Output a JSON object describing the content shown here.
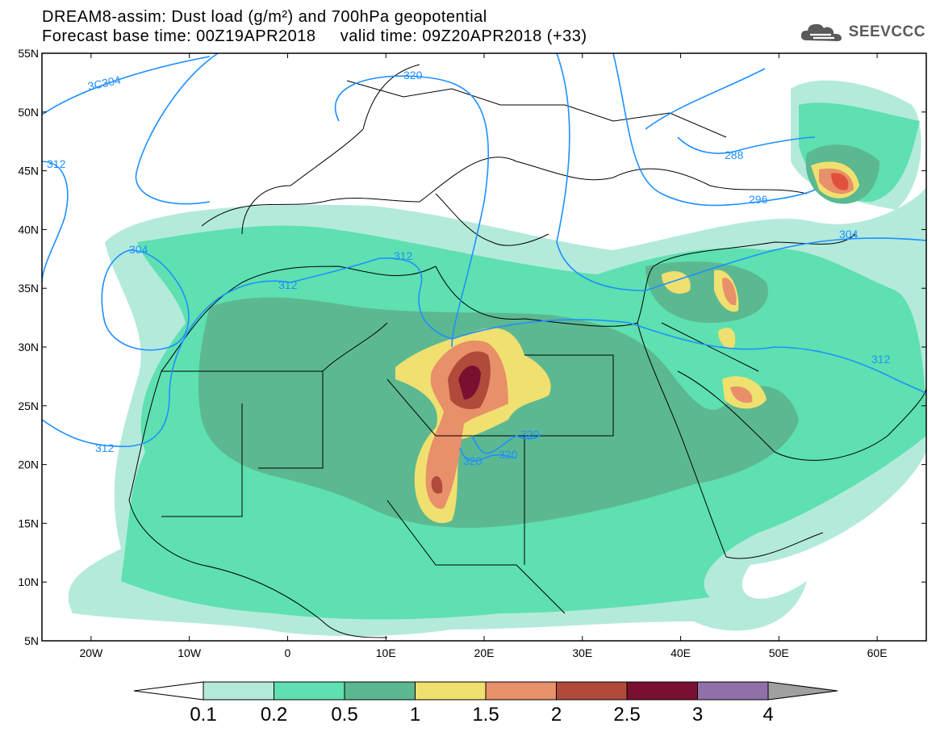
{
  "title": {
    "line1": "DREAM8-assim: Dust load (g/m²) and 700hPa geopotential",
    "line2": "Forecast base time: 00Z19APR2018     valid time: 09Z20APR2018 (+33)"
  },
  "logo": {
    "text": "SEEVCCC",
    "icon": "cloud-icon"
  },
  "map": {
    "lon_range": [
      -25,
      65
    ],
    "lat_range": [
      5,
      55
    ],
    "lat_ticks": [
      "55N",
      "50N",
      "45N",
      "40N",
      "35N",
      "30N",
      "25N",
      "20N",
      "15N",
      "10N",
      "5N"
    ],
    "lon_ticks": [
      "20W",
      "10W",
      "0",
      "10E",
      "20E",
      "30E",
      "40E",
      "50E",
      "60E"
    ],
    "contour_labels": [
      "3C304",
      "320",
      "312",
      "304",
      "312",
      "312",
      "288",
      "296",
      "304",
      "312",
      "312",
      "320",
      "320",
      "320"
    ],
    "colors": {
      "land": "#ffffff",
      "border": "#000000",
      "isoline": "#1e90ff"
    }
  },
  "colorbar": {
    "labels": [
      "0.1",
      "0.2",
      "0.5",
      "1",
      "1.5",
      "2",
      "2.5",
      "3",
      "4"
    ],
    "colors": [
      "#ffffff",
      "#b4eadc",
      "#5ee0b0",
      "#5cb890",
      "#f0e070",
      "#e8906a",
      "#b04a3a",
      "#7a1030",
      "#9070a8",
      "#a0a0a0"
    ]
  }
}
